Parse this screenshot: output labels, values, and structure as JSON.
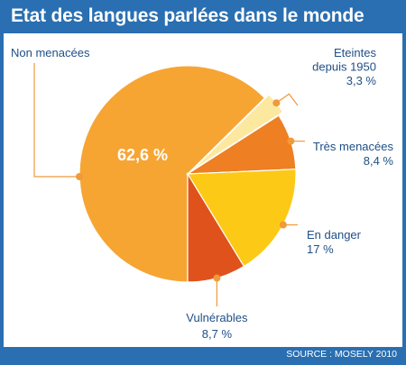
{
  "chart": {
    "title": "Etat des langues parlées dans le monde",
    "source": "SOURCE : MOSELY 2010"
  },
  "chart_data": {
    "type": "pie",
    "title": "Etat des langues parlées dans le monde",
    "categories": [
      "Non menacées",
      "Eteintes depuis 1950",
      "Très menacées",
      "En danger",
      "Vulnérables"
    ],
    "values": [
      62.6,
      3.3,
      8.4,
      17,
      8.7
    ],
    "unit": "%",
    "labels": [
      {
        "lines": [
          "Non menacées"
        ],
        "value_text": "62,6 %"
      },
      {
        "lines": [
          "Eteintes",
          "depuis 1950"
        ],
        "value_text": "3,3 %"
      },
      {
        "lines": [
          "Très menacées"
        ],
        "value_text": "8,4 %"
      },
      {
        "lines": [
          "En danger"
        ],
        "value_text": "17 %"
      },
      {
        "lines": [
          "Vulnérables"
        ],
        "value_text": "8,7 %"
      }
    ],
    "colors": [
      "#f6a533",
      "#fde8a0",
      "#ee7f22",
      "#fcc916",
      "#e0521b"
    ],
    "edge_colors": [
      "#f6a533",
      "#fde8a0",
      "#ee7f22",
      "#fcc916",
      "#e0521b"
    ],
    "leader_color": "#f09a3a"
  }
}
